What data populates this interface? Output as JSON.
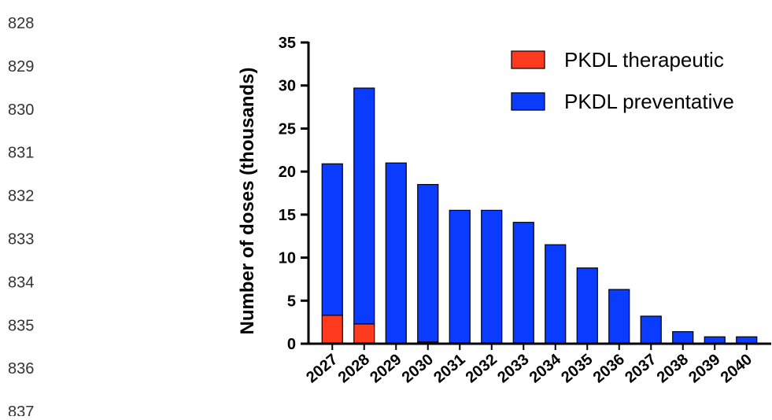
{
  "line_numbers": [
    "828",
    "829",
    "830",
    "831",
    "832",
    "833",
    "834",
    "835",
    "836",
    "837"
  ],
  "chart_data": {
    "type": "bar",
    "stacked": true,
    "title": "",
    "xlabel": "",
    "ylabel": "Number of doses (thousands)",
    "ylim": [
      0,
      35
    ],
    "yticks": [
      0,
      5,
      10,
      15,
      20,
      25,
      30,
      35
    ],
    "grid": false,
    "legend_position": "top-right",
    "categories": [
      "2027",
      "2028",
      "2029",
      "2030",
      "2031",
      "2032",
      "2033",
      "2034",
      "2035",
      "2036",
      "2037",
      "2038",
      "2039",
      "2040"
    ],
    "series": [
      {
        "name": "PKDL therapeutic",
        "color": "#ff3b1f",
        "values": [
          3.3,
          2.3,
          0,
          0.2,
          0.1,
          0.1,
          0.1,
          0,
          0,
          0,
          0,
          0,
          0,
          0
        ]
      },
      {
        "name": "PKDL preventative",
        "color": "#0a3cff",
        "values": [
          17.6,
          27.4,
          21.0,
          18.3,
          15.4,
          15.4,
          14.0,
          11.5,
          8.8,
          6.3,
          3.2,
          1.4,
          0.8,
          0.8
        ]
      }
    ]
  }
}
